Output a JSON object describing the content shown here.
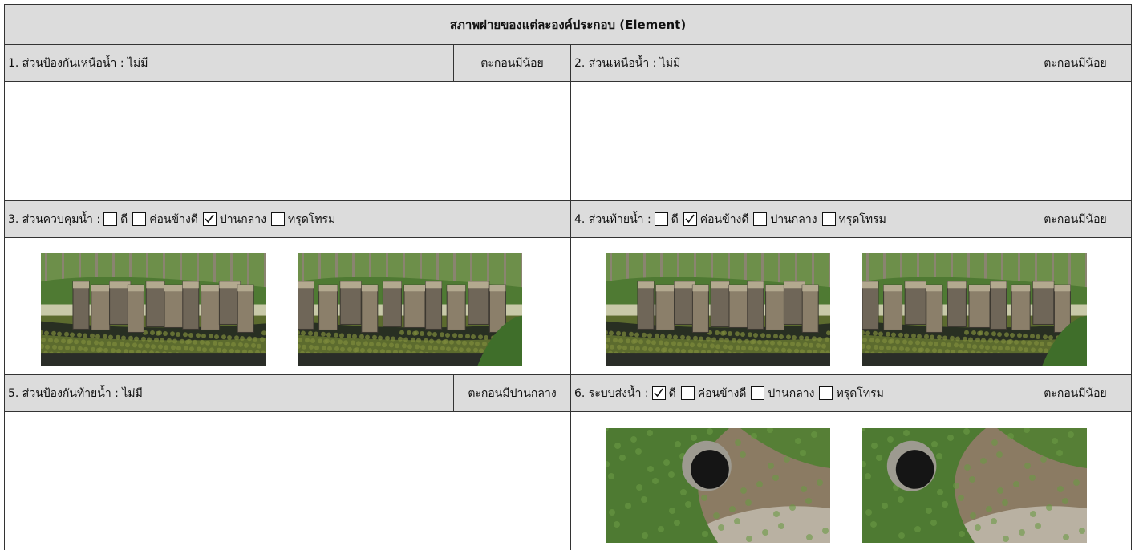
{
  "title": "สภาพฝายของแต่ละองค์ประกอบ (Element)",
  "sections": [
    {
      "label": "1. ส่วนป้องกันเหนือน้ำ : ไม่มี",
      "status": "ตะกอนมีน้อย"
    },
    {
      "label": "2. ส่วนเหนือน้ำ : ไม่มี",
      "status": "ตะกอนมีน้อย"
    },
    {
      "label": "3. ส่วนควบคุมน้ำ :",
      "options": [
        {
          "text": "ดี",
          "checked": false
        },
        {
          "text": "ค่อนข้างดี",
          "checked": false
        },
        {
          "text": "ปานกลาง",
          "checked": true
        },
        {
          "text": "ทรุดโทรม",
          "checked": false
        }
      ]
    },
    {
      "label": "4. ส่วนท้ายน้ำ :",
      "options": [
        {
          "text": "ดี",
          "checked": false
        },
        {
          "text": "ค่อนข้างดี",
          "checked": true
        },
        {
          "text": "ปานกลาง",
          "checked": false
        },
        {
          "text": "ทรุดโทรม",
          "checked": false
        }
      ],
      "status": "ตะกอนมีน้อย"
    },
    {
      "label": "5. ส่วนป้องกันท้ายน้ำ : ไม่มี",
      "status": "ตะกอนมีปานกลาง"
    },
    {
      "label": "6. ระบบส่งน้ำ :",
      "options": [
        {
          "text": "ดี",
          "checked": true
        },
        {
          "text": "ค่อนข้างดี",
          "checked": false
        },
        {
          "text": "ปานกลาง",
          "checked": false
        },
        {
          "text": "ทรุดโทรม",
          "checked": false
        }
      ],
      "status": "ตะกอนมีน้อย"
    }
  ]
}
